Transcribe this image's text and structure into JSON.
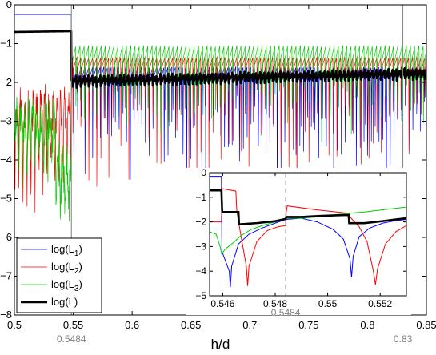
{
  "chart_data": [
    {
      "type": "line",
      "title": "",
      "xlabel": "h/d",
      "ylabel": "",
      "xlim": [
        0.5,
        0.85
      ],
      "ylim": [
        -8,
        0
      ],
      "xticks": [
        "0.5",
        "0.55",
        "0.6",
        "0.65",
        "0.7",
        "0.75",
        "0.8",
        "0.85"
      ],
      "yticks": [
        "0",
        "−1",
        "−2",
        "−3",
        "−4",
        "−5",
        "−6",
        "−7",
        "−8"
      ],
      "grid": false,
      "legend": "bottom-left",
      "vertical_markers": [
        {
          "x": 0.5484,
          "label": "0.5484",
          "color": "#808080"
        },
        {
          "x": 0.83,
          "label": "0.83",
          "color": "#808080"
        }
      ],
      "series": [
        {
          "name": "log(L1)",
          "label_base": "log(L",
          "label_sub": "1",
          "label_end": ")",
          "color": "#0000ff",
          "width": 0.7,
          "left_level": -0.25,
          "right_level": -1.95,
          "dip": 2.4,
          "period": 0.0032,
          "phase": 0.0
        },
        {
          "name": "log(L2)",
          "label_base": "log(L",
          "label_sub": "2",
          "label_end": ")",
          "color": "#ff0000",
          "width": 0.7,
          "left_level": -2.0,
          "right_level": -1.7,
          "dip": 2.2,
          "period": 0.0034,
          "phase": 0.0012
        },
        {
          "name": "log(L3)",
          "label_base": "log(L",
          "label_sub": "3",
          "label_end": ")",
          "color": "#00cc00",
          "width": 0.7,
          "left_level": -2.3,
          "right_level": -1.55,
          "dip": 1.4,
          "period": 0.0036,
          "phase": 0.0022
        },
        {
          "name": "log(L)",
          "label_base": "log(L",
          "label_sub": "",
          "label_end": ")",
          "color": "#000000",
          "width": 2.6,
          "left_level": -0.7,
          "right_level": -1.78,
          "dip": 0.25,
          "period": 0.0034,
          "phase": 0.0015
        }
      ]
    },
    {
      "type": "line",
      "title": "",
      "xlabel": "",
      "ylabel": "",
      "xlim": [
        0.5455,
        0.553
      ],
      "ylim": [
        -5,
        0
      ],
      "xticks": [
        "0.546",
        "0.548",
        "0.55",
        "0.552"
      ],
      "yticks": [
        "0",
        "−1",
        "−2",
        "−3",
        "−4",
        "−5"
      ],
      "grid": false,
      "legend": "none",
      "vertical_markers": [
        {
          "x": 0.5484,
          "label": "0.5484",
          "color": "#808080",
          "style": "dashed"
        }
      ],
      "series": [
        {
          "name": "log(L1)",
          "color": "#0000ff",
          "points": [
            [
              0.5455,
              -0.15
            ],
            [
              0.54595,
              -0.15
            ],
            [
              0.54597,
              -3.2
            ],
            [
              0.54625,
              -4.0
            ],
            [
              0.54629,
              -4.65
            ],
            [
              0.54634,
              -3.8
            ],
            [
              0.5466,
              -2.9
            ],
            [
              0.547,
              -2.5
            ],
            [
              0.5475,
              -2.25
            ],
            [
              0.548,
              -2.05
            ],
            [
              0.5484,
              -1.9
            ],
            [
              0.549,
              -1.85
            ],
            [
              0.5496,
              -2.0
            ],
            [
              0.5502,
              -2.3
            ],
            [
              0.5506,
              -2.7
            ],
            [
              0.55085,
              -3.5
            ],
            [
              0.55091,
              -4.25
            ],
            [
              0.55097,
              -3.4
            ],
            [
              0.5512,
              -2.6
            ],
            [
              0.5516,
              -2.25
            ],
            [
              0.5521,
              -2.05
            ],
            [
              0.5526,
              -1.95
            ],
            [
              0.553,
              -1.9
            ]
          ]
        },
        {
          "name": "log(L2)",
          "color": "#ff0000",
          "points": [
            [
              0.5455,
              -2.0
            ],
            [
              0.54595,
              -2.0
            ],
            [
              0.54598,
              -0.65
            ],
            [
              0.5465,
              -0.75
            ],
            [
              0.54654,
              -1.6
            ],
            [
              0.5467,
              -2.6
            ],
            [
              0.5469,
              -3.8
            ],
            [
              0.54695,
              -4.6
            ],
            [
              0.547,
              -3.8
            ],
            [
              0.5473,
              -2.8
            ],
            [
              0.5477,
              -2.35
            ],
            [
              0.5481,
              -2.2
            ],
            [
              0.5484,
              -2.15
            ],
            [
              0.54842,
              -1.6
            ],
            [
              0.54846,
              -1.35
            ],
            [
              0.5495,
              -1.5
            ],
            [
              0.5508,
              -1.65
            ],
            [
              0.55085,
              -1.8
            ],
            [
              0.5512,
              -2.2
            ],
            [
              0.5515,
              -2.8
            ],
            [
              0.55175,
              -4.05
            ],
            [
              0.55182,
              -4.55
            ],
            [
              0.5519,
              -3.9
            ],
            [
              0.5522,
              -2.9
            ],
            [
              0.5526,
              -2.4
            ],
            [
              0.553,
              -2.15
            ]
          ]
        },
        {
          "name": "log(L3)",
          "color": "#00cc00",
          "points": [
            [
              0.5455,
              -2.4
            ],
            [
              0.54575,
              -2.5
            ],
            [
              0.5459,
              -3.0
            ],
            [
              0.54596,
              -3.3
            ],
            [
              0.5461,
              -3.1
            ],
            [
              0.5464,
              -2.85
            ],
            [
              0.5467,
              -2.55
            ],
            [
              0.5471,
              -2.3
            ],
            [
              0.5475,
              -2.15
            ],
            [
              0.548,
              -2.0
            ],
            [
              0.5484,
              -1.85
            ],
            [
              0.549,
              -1.85
            ],
            [
              0.5496,
              -1.8
            ],
            [
              0.5502,
              -1.72
            ],
            [
              0.5508,
              -1.65
            ],
            [
              0.5514,
              -1.6
            ],
            [
              0.552,
              -1.52
            ],
            [
              0.5526,
              -1.45
            ],
            [
              0.553,
              -1.4
            ]
          ]
        },
        {
          "name": "log(L)",
          "color": "#000000",
          "points": [
            [
              0.5455,
              -0.72
            ],
            [
              0.54595,
              -0.72
            ],
            [
              0.54598,
              -1.6
            ],
            [
              0.5466,
              -1.6
            ],
            [
              0.54662,
              -2.1
            ],
            [
              0.5473,
              -2.05
            ],
            [
              0.548,
              -1.97
            ],
            [
              0.5484,
              -1.88
            ],
            [
              0.54842,
              -1.8
            ],
            [
              0.549,
              -1.8
            ],
            [
              0.5497,
              -1.76
            ],
            [
              0.5504,
              -1.73
            ],
            [
              0.5508,
              -1.72
            ],
            [
              0.55082,
              -2.05
            ],
            [
              0.5514,
              -2.05
            ],
            [
              0.552,
              -1.98
            ],
            [
              0.5526,
              -1.9
            ],
            [
              0.553,
              -1.85
            ]
          ]
        }
      ]
    }
  ]
}
